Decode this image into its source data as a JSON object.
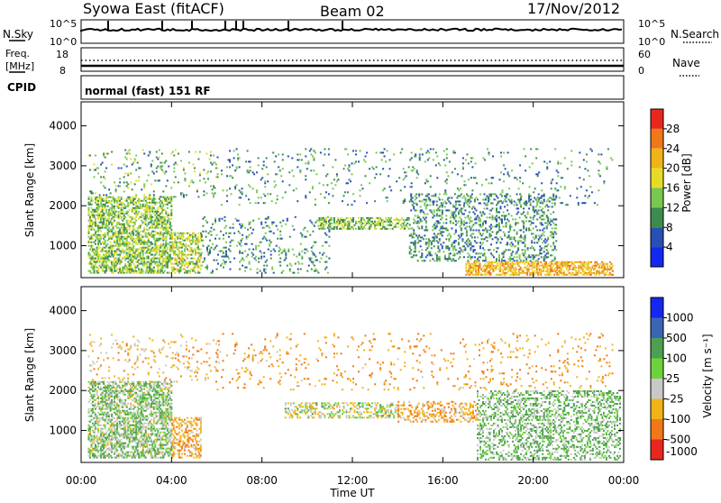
{
  "header": {
    "title": "Syowa East (fitACF)",
    "beam": "Beam 02",
    "date": "17/Nov/2012"
  },
  "top_panel": {
    "left_label": "N.Sky",
    "left_ticks": [
      "10^5",
      "10^0"
    ],
    "right_label": "N.Search",
    "right_ticks": [
      "10^5",
      "10^0"
    ]
  },
  "freq_panel": {
    "left_label_1": "Freq.",
    "left_label_2": "[MHz]",
    "left_ticks": [
      "18",
      "8"
    ],
    "right_label": "Nave",
    "right_ticks": [
      "60",
      "0"
    ]
  },
  "cpid_panel": {
    "label": "CPID",
    "text": "normal (fast) 151 RF"
  },
  "x_axis": {
    "label": "Time UT",
    "ticks": [
      "00:00",
      "04:00",
      "08:00",
      "12:00",
      "16:00",
      "20:00",
      "00:00"
    ]
  },
  "power_colorbar": {
    "label": "Power [dB]",
    "ticks": [
      "28",
      "24",
      "20",
      "16",
      "12",
      "8",
      "4"
    ],
    "colors": [
      "#e8281e",
      "#f07818",
      "#f0b418",
      "#e6dc28",
      "#78c850",
      "#3c8c50",
      "#2850b4",
      "#1428f0"
    ]
  },
  "velocity_colorbar": {
    "label": "Velocity [m s⁻¹]",
    "ticks": [
      "1000",
      "500",
      "100",
      "25",
      "-25",
      "-100",
      "-500",
      "-1000"
    ],
    "colors": [
      "#1428f0",
      "#3c64b4",
      "#4ca050",
      "#6ed23c",
      "#c8c8c8",
      "#f0b418",
      "#f07818",
      "#e8281e"
    ]
  },
  "chart_data": [
    {
      "type": "heatmap",
      "name_text": "Power",
      "ylabel": "Slant Range [km]",
      "y_ticks": [
        "1000",
        "2000",
        "3000",
        "4000"
      ],
      "ylim": [
        200,
        4600
      ],
      "xlim": [
        0,
        24
      ],
      "x_unit": "hours UT",
      "regions": [
        {
          "t0": 0.3,
          "t1": 4.0,
          "r0": 300,
          "r1": 2200,
          "density": 0.55,
          "level": 12
        },
        {
          "t0": 4.0,
          "t1": 5.3,
          "r0": 300,
          "r1": 1300,
          "density": 0.5,
          "level": 14
        },
        {
          "t0": 5.3,
          "t1": 11.0,
          "r0": 300,
          "r1": 1700,
          "density": 0.12,
          "level": 8
        },
        {
          "t0": 10.5,
          "t1": 14.5,
          "r0": 1400,
          "r1": 1700,
          "density": 0.5,
          "level": 12
        },
        {
          "t0": 14.5,
          "t1": 21.0,
          "r0": 600,
          "r1": 2300,
          "density": 0.25,
          "level": 8
        },
        {
          "t0": 17.0,
          "t1": 23.5,
          "r0": 250,
          "r1": 600,
          "density": 0.6,
          "level": 20
        },
        {
          "t0": 0.3,
          "t1": 6.0,
          "r0": 2200,
          "r1": 3400,
          "density": 0.08,
          "level": 10
        },
        {
          "t0": 6.0,
          "t1": 23.5,
          "r0": 2000,
          "r1": 3400,
          "density": 0.05,
          "level": 8
        }
      ]
    },
    {
      "type": "heatmap",
      "name_text": "Velocity",
      "ylabel": "Slant Range [km]",
      "y_ticks": [
        "1000",
        "2000",
        "3000",
        "4000"
      ],
      "ylim": [
        200,
        4600
      ],
      "xlim": [
        0,
        24
      ],
      "x_unit": "hours UT",
      "regions": [
        {
          "t0": 0.3,
          "t1": 4.0,
          "r0": 300,
          "r1": 2200,
          "density": 0.55,
          "level": 40
        },
        {
          "t0": 4.0,
          "t1": 5.3,
          "r0": 300,
          "r1": 1300,
          "density": 0.4,
          "level": -80
        },
        {
          "t0": 9.0,
          "t1": 14.0,
          "r0": 1300,
          "r1": 1700,
          "density": 0.4,
          "level": 0
        },
        {
          "t0": 14.0,
          "t1": 17.5,
          "r0": 1200,
          "r1": 1700,
          "density": 0.3,
          "level": -80
        },
        {
          "t0": 17.5,
          "t1": 23.8,
          "r0": 250,
          "r1": 2000,
          "density": 0.35,
          "level": 60
        },
        {
          "t0": 0.3,
          "t1": 6.0,
          "r0": 2200,
          "r1": 3400,
          "density": 0.08,
          "level": -60
        },
        {
          "t0": 6.0,
          "t1": 23.5,
          "r0": 2000,
          "r1": 3400,
          "density": 0.05,
          "level": -100
        }
      ]
    }
  ]
}
